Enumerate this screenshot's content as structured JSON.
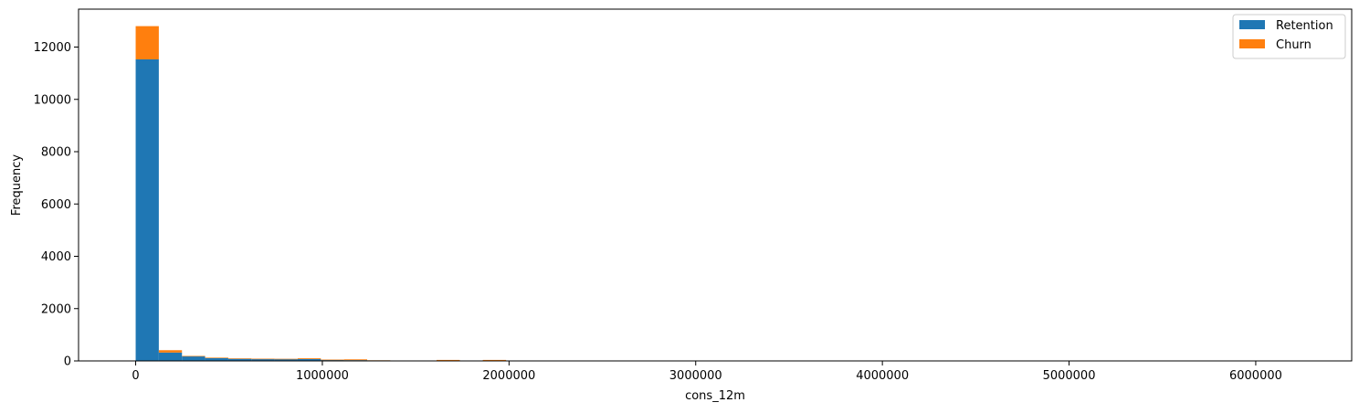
{
  "chart_data": {
    "type": "bar",
    "stacked": true,
    "xlabel": "cons_12m",
    "ylabel": "Frequency",
    "xlim": [
      -306000,
      6514000
    ],
    "ylim": [
      0,
      13450
    ],
    "xticks": [
      0,
      1000000,
      2000000,
      3000000,
      4000000,
      5000000,
      6000000
    ],
    "xtick_labels": [
      "0",
      "1000000",
      "2000000",
      "3000000",
      "4000000",
      "5000000",
      "6000000"
    ],
    "yticks": [
      0,
      2000,
      4000,
      6000,
      8000,
      10000,
      12000
    ],
    "ytick_labels": [
      "0",
      "2000",
      "4000",
      "6000",
      "8000",
      "10000",
      "12000"
    ],
    "bin_edges": [
      0,
      124000,
      248000,
      372000,
      496000,
      620000,
      744000,
      868000,
      992000,
      1116000,
      1240000,
      1364000,
      1488000,
      1612000,
      1736000,
      1860000,
      1984000,
      2108000,
      2232000,
      2356000,
      2480000,
      2604000,
      2728000,
      2852000,
      2976000,
      3100000,
      3224000,
      3348000,
      3472000,
      3596000,
      3720000,
      3844000,
      3968000,
      4092000,
      4216000,
      4340000,
      4464000,
      4588000,
      4712000,
      4836000,
      4960000,
      5084000,
      5208000,
      5332000,
      5456000,
      5580000,
      5704000,
      5828000,
      5952000,
      6076000,
      6200000
    ],
    "series": [
      {
        "name": "Retention",
        "color": "#1f77b4",
        "values": [
          11530,
          320,
          180,
          120,
          90,
          80,
          75,
          70,
          45,
          30,
          20,
          15,
          15,
          35,
          15,
          35,
          10,
          10,
          8,
          8,
          8,
          5,
          0,
          0,
          10,
          0,
          8,
          8,
          0,
          8,
          0,
          0,
          8,
          0,
          8,
          8,
          0,
          0,
          0,
          0,
          0,
          0,
          0,
          0,
          0,
          0,
          8,
          0,
          0,
          8
        ]
      },
      {
        "name": "Churn",
        "color": "#ff7f0e",
        "values": [
          1270,
          90,
          10,
          5,
          5,
          5,
          5,
          30,
          5,
          30,
          3,
          2,
          2,
          3,
          2,
          3,
          1,
          1,
          1,
          1,
          1,
          1,
          0,
          0,
          1,
          0,
          1,
          1,
          0,
          1,
          0,
          0,
          1,
          0,
          1,
          1,
          0,
          0,
          0,
          0,
          0,
          0,
          0,
          0,
          0,
          0,
          1,
          0,
          0,
          1
        ]
      }
    ],
    "legend_position": "upper-right",
    "grid": false
  }
}
